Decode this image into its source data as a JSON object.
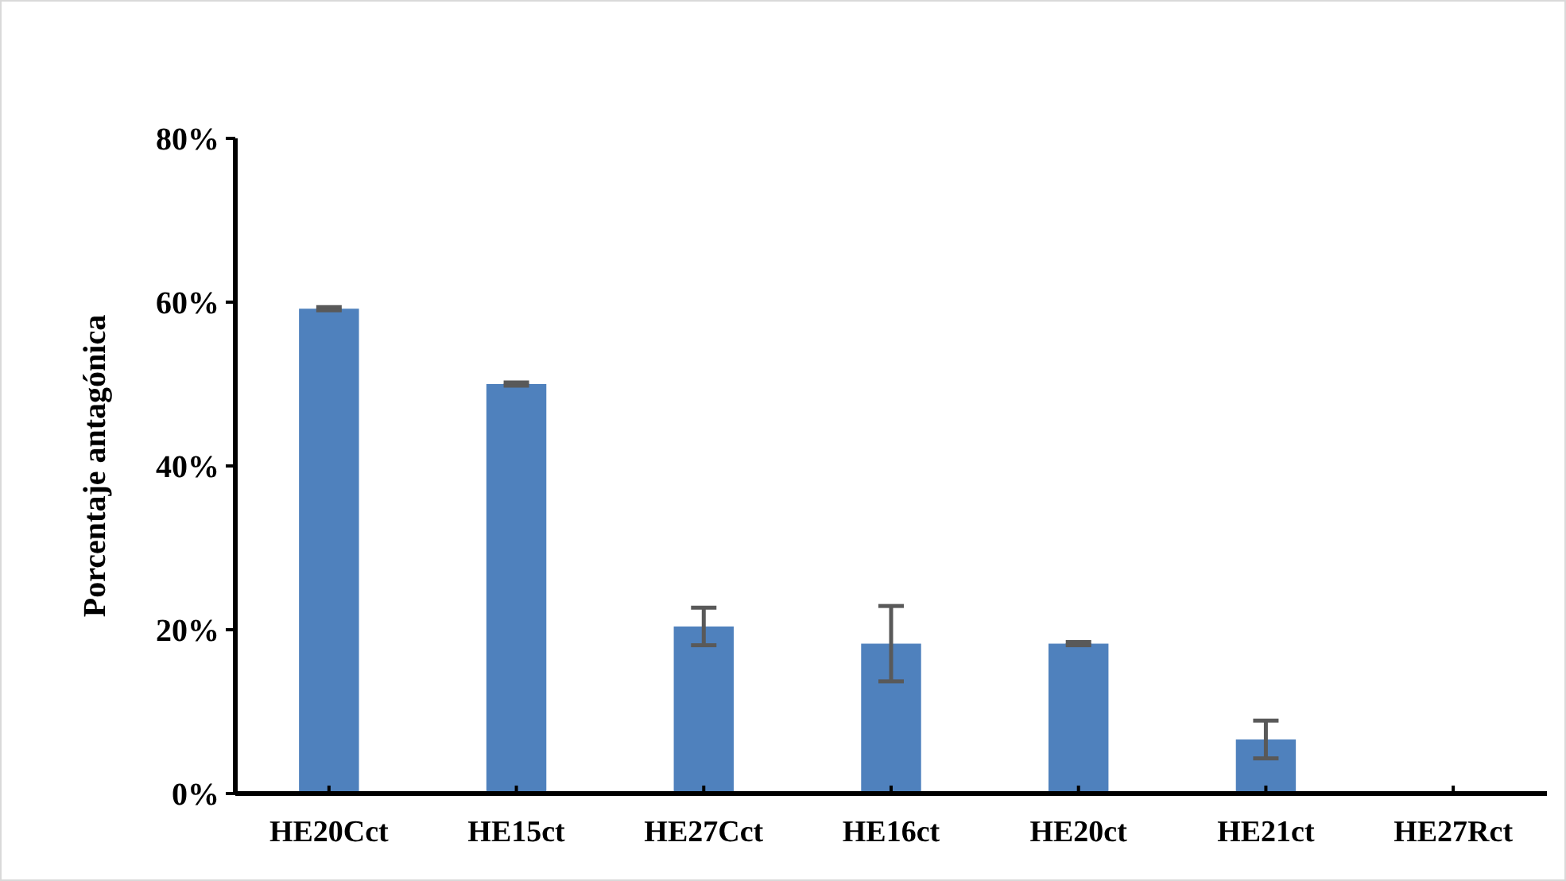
{
  "chart_data": {
    "type": "bar",
    "ylabel": "Porcentaje antagónica",
    "categories": [
      "HE20Cct",
      "HE15ct",
      "HE27Cct",
      "HE16ct",
      "HE20ct",
      "HE21ct",
      "HE27Rct"
    ],
    "values": [
      59.2,
      50.0,
      20.4,
      18.3,
      18.3,
      6.6,
      0
    ],
    "errors": [
      0.2,
      0.2,
      2.3,
      4.6,
      0.2,
      2.3,
      null
    ],
    "color": "#4f81bd",
    "ylim": [
      0,
      80
    ],
    "yticks": [
      {
        "value": 0,
        "label": "0%"
      },
      {
        "value": 20,
        "label": "20%"
      },
      {
        "value": 40,
        "label": "40%"
      },
      {
        "value": 60,
        "label": "60%"
      },
      {
        "value": 80,
        "label": "80%"
      }
    ],
    "grid": false
  }
}
